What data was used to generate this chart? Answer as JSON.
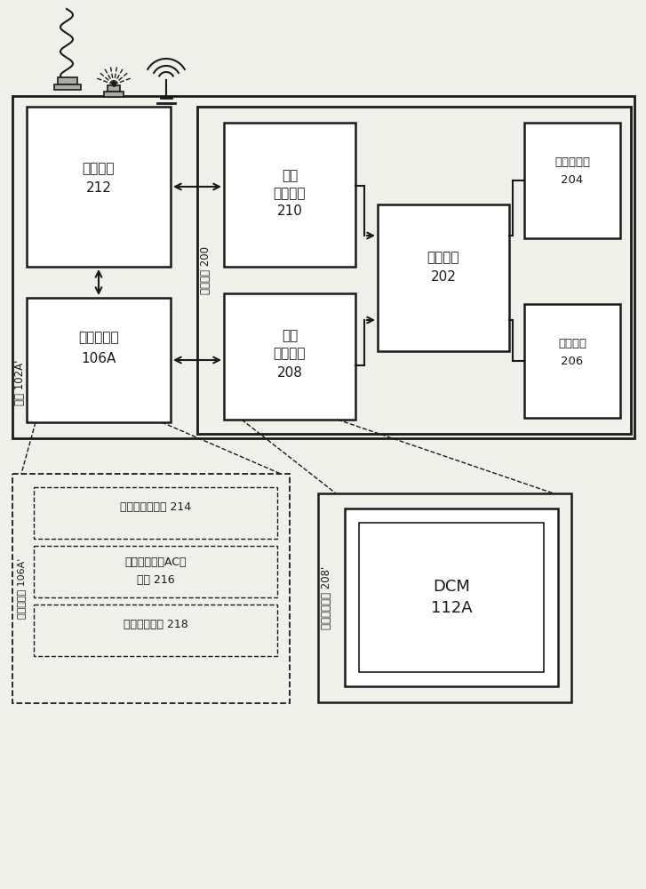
{
  "bg_color": "#f0f0eb",
  "line_color": "#1a1a1a",
  "box_fill": "#ffffff",
  "fig_width": 7.27,
  "fig_height": 10.0,
  "dpi": 100,
  "labels": {
    "comm_mod": "通信模块",
    "comm_num": "212",
    "conf_mod": "置信度模块",
    "conf_num": "106A",
    "sys_mod": "系统模块 200",
    "ci_mod_1": "通信",
    "ci_mod_2": "接口模块",
    "ci_num": "210",
    "ui_mod_1": "用户",
    "ui_mod_2": "接口模块",
    "ui_num": "208",
    "proc_1": "处理模块",
    "proc_num": "202",
    "mem_1": "存储器模块",
    "mem_num": "204",
    "pwr_1": "功率模块",
    "pwr_num": "206",
    "dev_label": "设备 102A'",
    "exp_label": "置信度模块 106A'",
    "sub1_a": "设备置信度模块 214",
    "sub2_a": "认证和收集（AC）",
    "sub2_b": "模块 216",
    "sub3_a": "访问控制模块 218",
    "eui_label": "用户接口模块 208'",
    "dcm": "DCM",
    "dcm_num": "112A"
  }
}
